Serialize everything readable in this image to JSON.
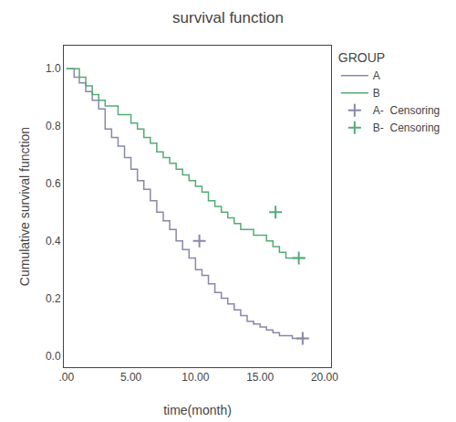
{
  "chart_data": {
    "type": "line",
    "title": "survival function",
    "x_label": "time(month)",
    "y_label": "Cumulative survival function",
    "legend_title": "GROUP",
    "legend": "right",
    "grid": false,
    "xlim": [
      -0.2,
      20.5
    ],
    "ylim": [
      -0.04,
      1.08
    ],
    "xticks": [
      {
        "value": 0,
        "label": ".00"
      },
      {
        "value": 5.0,
        "label": "5.00"
      },
      {
        "value": 10.0,
        "label": "10.00"
      },
      {
        "value": 15.0,
        "label": "15.00"
      },
      {
        "value": 20.0,
        "label": "20.00"
      }
    ],
    "yticks": [
      {
        "value": 0.0,
        "label": "0.0"
      },
      0.2,
      0.4,
      0.6,
      0.8,
      {
        "value": 1.0,
        "label": "1.0"
      }
    ],
    "series": [
      {
        "name": "A",
        "type": "line",
        "line_style": "step",
        "color": "#8888aa",
        "x": [
          0.0,
          0.6,
          1.0,
          1.5,
          2.0,
          2.5,
          3.0,
          3.5,
          4.0,
          4.5,
          5.0,
          5.5,
          6.0,
          6.5,
          7.0,
          7.5,
          8.0,
          8.5,
          9.0,
          9.5,
          10.0,
          10.5,
          11.0,
          11.5,
          12.0,
          12.5,
          13.0,
          13.5,
          14.0,
          14.5,
          15.0,
          15.5,
          16.0,
          16.5,
          17.0,
          17.5,
          18.0,
          18.5
        ],
        "values": [
          1.0,
          0.97,
          0.95,
          0.92,
          0.89,
          0.86,
          0.79,
          0.76,
          0.73,
          0.69,
          0.65,
          0.61,
          0.58,
          0.54,
          0.5,
          0.47,
          0.44,
          0.4,
          0.37,
          0.34,
          0.3,
          0.28,
          0.25,
          0.22,
          0.2,
          0.18,
          0.16,
          0.14,
          0.12,
          0.11,
          0.1,
          0.09,
          0.08,
          0.07,
          0.07,
          0.06,
          0.06,
          0.06
        ]
      },
      {
        "name": "B",
        "type": "line",
        "line_style": "step",
        "color": "#55aa77",
        "x": [
          0.0,
          0.5,
          1.0,
          1.5,
          2.0,
          2.5,
          3.0,
          4.0,
          5.0,
          5.5,
          6.0,
          6.5,
          7.0,
          7.5,
          8.0,
          8.5,
          9.0,
          9.5,
          10.0,
          10.5,
          11.0,
          11.5,
          12.0,
          12.5,
          13.0,
          13.5,
          14.5,
          15.5,
          16.0,
          16.5,
          17.0,
          17.5,
          18.0,
          18.5
        ],
        "values": [
          1.0,
          1.0,
          0.97,
          0.94,
          0.91,
          0.89,
          0.87,
          0.84,
          0.81,
          0.79,
          0.76,
          0.74,
          0.71,
          0.69,
          0.67,
          0.65,
          0.63,
          0.61,
          0.59,
          0.57,
          0.54,
          0.52,
          0.5,
          0.48,
          0.46,
          0.44,
          0.42,
          0.4,
          0.38,
          0.36,
          0.34,
          0.34,
          0.34,
          0.34
        ]
      },
      {
        "name": "A-  Censoring",
        "type": "scatter",
        "marker": "plus",
        "color": "#8888aa",
        "x": [
          10.3,
          18.3
        ],
        "values": [
          0.4,
          0.06
        ]
      },
      {
        "name": "B-  Censoring",
        "type": "scatter",
        "marker": "plus",
        "color": "#55aa77",
        "x": [
          16.2,
          18.0
        ],
        "values": [
          0.5,
          0.34
        ]
      }
    ]
  }
}
